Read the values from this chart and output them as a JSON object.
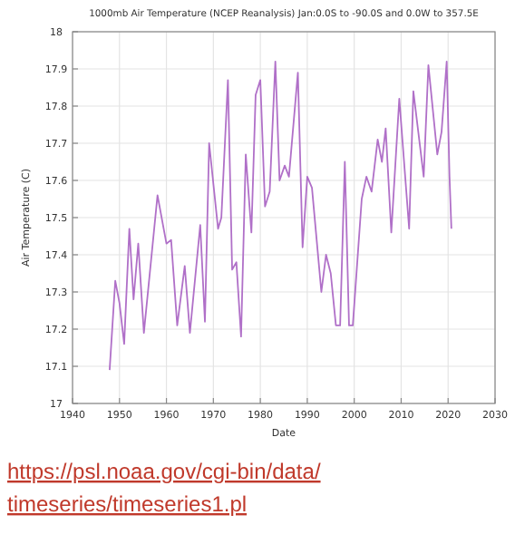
{
  "chart_data": {
    "type": "line",
    "title": "1000mb Air Temperature (NCEP Reanalysis) Jan:0.0S to -90.0S and 0.0W to 357.5E",
    "xlabel": "Date",
    "ylabel": "Air Temperature (C)",
    "x": [
      1947.9,
      1949.1,
      1950,
      1951,
      1952.1,
      1953,
      1954,
      1955.2,
      1958.1,
      1960,
      1961,
      1962.3,
      1963.9,
      1965,
      1967.2,
      1968.2,
      1969.1,
      1971,
      1971.7,
      1973.1,
      1974,
      1974.9,
      1975.9,
      1976.9,
      1978.1,
      1979,
      1980,
      1981,
      1982,
      1983.2,
      1984.1,
      1985.2,
      1986.1,
      1988,
      1989,
      1990,
      1991,
      1993,
      1994,
      1995,
      1996.1,
      1997,
      1998,
      1998.9,
      1999.7,
      2001.6,
      2002.6,
      2003.7,
      2005,
      2005.9,
      2006.7,
      2007.9,
      2009.6,
      2011.7,
      2012.6,
      2014.8,
      2015.8,
      2017.7,
      2018.6,
      2019.7,
      2020.3,
      2020.7
    ],
    "series": [
      {
        "color": "#b070c8",
        "values": [
          17.09,
          17.33,
          17.27,
          17.16,
          17.47,
          17.28,
          17.43,
          17.19,
          17.56,
          17.43,
          17.44,
          17.21,
          17.37,
          17.19,
          17.48,
          17.22,
          17.7,
          17.47,
          17.5,
          17.87,
          17.36,
          17.38,
          17.18,
          17.67,
          17.46,
          17.83,
          17.87,
          17.53,
          17.57,
          17.92,
          17.6,
          17.64,
          17.61,
          17.89,
          17.42,
          17.61,
          17.58,
          17.3,
          17.4,
          17.35,
          17.21,
          17.21,
          17.65,
          17.21,
          17.21,
          17.55,
          17.61,
          17.57,
          17.71,
          17.65,
          17.74,
          17.46,
          17.82,
          17.47,
          17.84,
          17.61,
          17.91,
          17.67,
          17.73,
          17.92,
          17.61,
          17.47
        ]
      }
    ],
    "xlim": [
      1940,
      2030
    ],
    "xticks": [
      1940,
      1950,
      1960,
      1970,
      1980,
      1990,
      2000,
      2010,
      2020,
      2030
    ],
    "ylim": [
      17,
      18
    ],
    "yticks": [
      17,
      17.1,
      17.2,
      17.3,
      17.4,
      17.5,
      17.6,
      17.7,
      17.8,
      17.9,
      18
    ],
    "grid": true,
    "marker": "none",
    "line_style": "solid",
    "annotations": [
      "https://psl.noaa.gov/cgi-bin/data/timeseries/timeseries1.pl"
    ]
  }
}
